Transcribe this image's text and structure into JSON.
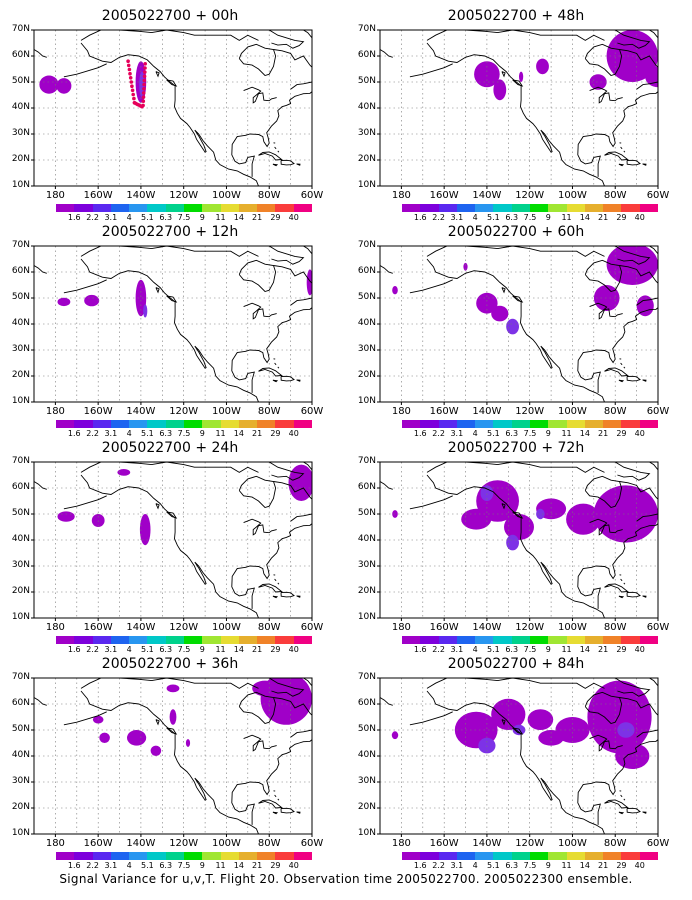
{
  "caption": "Signal Variance for u,v,T. Flight 20. Observation time 2005022700. 2005022300 ensemble.",
  "y_ticks": [
    "70N",
    "60N",
    "50N",
    "40N",
    "30N",
    "20N",
    "10N"
  ],
  "x_ticks": [
    "180",
    "160W",
    "140W",
    "120W",
    "100W",
    "80W",
    "60W"
  ],
  "colorbar": {
    "labels": [
      "1.6",
      "2.2",
      "3.1",
      "4",
      "5.1",
      "6.3",
      "7.5",
      "9",
      "11",
      "14",
      "21",
      "29",
      "40"
    ],
    "colors": [
      "#a000c8",
      "#7d00dc",
      "#5a28f0",
      "#1e64f0",
      "#2896f0",
      "#00c8c8",
      "#00d28c",
      "#00dc00",
      "#a0e632",
      "#e6dc32",
      "#e6af2d",
      "#f08228",
      "#fa3c3c",
      "#f00082"
    ]
  },
  "panels": [
    {
      "title": "2005022700 + 00h"
    },
    {
      "title": "2005022700 + 48h"
    },
    {
      "title": "2005022700 + 12h"
    },
    {
      "title": "2005022700 + 60h"
    },
    {
      "title": "2005022700 + 24h"
    },
    {
      "title": "2005022700 + 72h"
    },
    {
      "title": "2005022700 + 36h"
    },
    {
      "title": "2005022700 + 84h"
    }
  ]
}
